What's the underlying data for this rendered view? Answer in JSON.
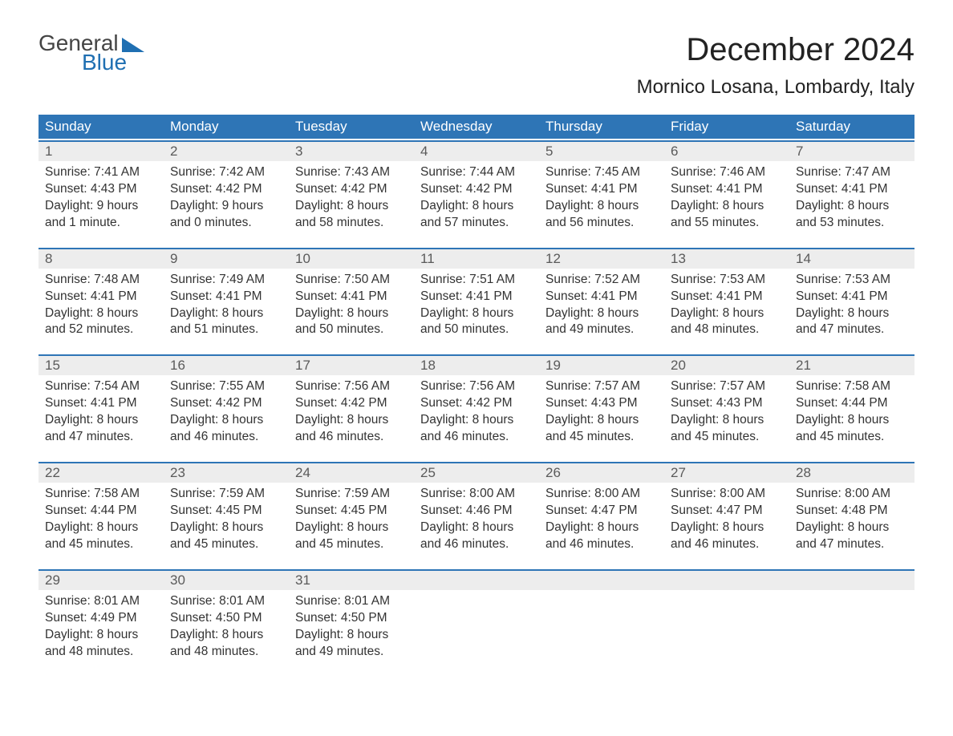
{
  "logo": {
    "top": "General",
    "bottom": "Blue"
  },
  "title": "December 2024",
  "location": "Mornico Losana, Lombardy, Italy",
  "colors": {
    "header_bg": "#2e75b6",
    "header_text": "#ffffff",
    "row_border": "#2e75b6",
    "daynum_bg": "#ededed",
    "daynum_text": "#5a5a5a",
    "body_text": "#333333",
    "logo_blue": "#1f6fb2",
    "logo_gray": "#444444",
    "page_bg": "#ffffff"
  },
  "fonts": {
    "title_size_pt": 30,
    "location_size_pt": 18,
    "dow_size_pt": 13,
    "daynum_size_pt": 13,
    "body_size_pt": 12
  },
  "layout": {
    "columns": 7,
    "rows": 5
  },
  "days_of_week": [
    "Sunday",
    "Monday",
    "Tuesday",
    "Wednesday",
    "Thursday",
    "Friday",
    "Saturday"
  ],
  "weeks": [
    [
      {
        "n": "1",
        "sunrise": "Sunrise: 7:41 AM",
        "sunset": "Sunset: 4:43 PM",
        "dl1": "Daylight: 9 hours",
        "dl2": "and 1 minute."
      },
      {
        "n": "2",
        "sunrise": "Sunrise: 7:42 AM",
        "sunset": "Sunset: 4:42 PM",
        "dl1": "Daylight: 9 hours",
        "dl2": "and 0 minutes."
      },
      {
        "n": "3",
        "sunrise": "Sunrise: 7:43 AM",
        "sunset": "Sunset: 4:42 PM",
        "dl1": "Daylight: 8 hours",
        "dl2": "and 58 minutes."
      },
      {
        "n": "4",
        "sunrise": "Sunrise: 7:44 AM",
        "sunset": "Sunset: 4:42 PM",
        "dl1": "Daylight: 8 hours",
        "dl2": "and 57 minutes."
      },
      {
        "n": "5",
        "sunrise": "Sunrise: 7:45 AM",
        "sunset": "Sunset: 4:41 PM",
        "dl1": "Daylight: 8 hours",
        "dl2": "and 56 minutes."
      },
      {
        "n": "6",
        "sunrise": "Sunrise: 7:46 AM",
        "sunset": "Sunset: 4:41 PM",
        "dl1": "Daylight: 8 hours",
        "dl2": "and 55 minutes."
      },
      {
        "n": "7",
        "sunrise": "Sunrise: 7:47 AM",
        "sunset": "Sunset: 4:41 PM",
        "dl1": "Daylight: 8 hours",
        "dl2": "and 53 minutes."
      }
    ],
    [
      {
        "n": "8",
        "sunrise": "Sunrise: 7:48 AM",
        "sunset": "Sunset: 4:41 PM",
        "dl1": "Daylight: 8 hours",
        "dl2": "and 52 minutes."
      },
      {
        "n": "9",
        "sunrise": "Sunrise: 7:49 AM",
        "sunset": "Sunset: 4:41 PM",
        "dl1": "Daylight: 8 hours",
        "dl2": "and 51 minutes."
      },
      {
        "n": "10",
        "sunrise": "Sunrise: 7:50 AM",
        "sunset": "Sunset: 4:41 PM",
        "dl1": "Daylight: 8 hours",
        "dl2": "and 50 minutes."
      },
      {
        "n": "11",
        "sunrise": "Sunrise: 7:51 AM",
        "sunset": "Sunset: 4:41 PM",
        "dl1": "Daylight: 8 hours",
        "dl2": "and 50 minutes."
      },
      {
        "n": "12",
        "sunrise": "Sunrise: 7:52 AM",
        "sunset": "Sunset: 4:41 PM",
        "dl1": "Daylight: 8 hours",
        "dl2": "and 49 minutes."
      },
      {
        "n": "13",
        "sunrise": "Sunrise: 7:53 AM",
        "sunset": "Sunset: 4:41 PM",
        "dl1": "Daylight: 8 hours",
        "dl2": "and 48 minutes."
      },
      {
        "n": "14",
        "sunrise": "Sunrise: 7:53 AM",
        "sunset": "Sunset: 4:41 PM",
        "dl1": "Daylight: 8 hours",
        "dl2": "and 47 minutes."
      }
    ],
    [
      {
        "n": "15",
        "sunrise": "Sunrise: 7:54 AM",
        "sunset": "Sunset: 4:41 PM",
        "dl1": "Daylight: 8 hours",
        "dl2": "and 47 minutes."
      },
      {
        "n": "16",
        "sunrise": "Sunrise: 7:55 AM",
        "sunset": "Sunset: 4:42 PM",
        "dl1": "Daylight: 8 hours",
        "dl2": "and 46 minutes."
      },
      {
        "n": "17",
        "sunrise": "Sunrise: 7:56 AM",
        "sunset": "Sunset: 4:42 PM",
        "dl1": "Daylight: 8 hours",
        "dl2": "and 46 minutes."
      },
      {
        "n": "18",
        "sunrise": "Sunrise: 7:56 AM",
        "sunset": "Sunset: 4:42 PM",
        "dl1": "Daylight: 8 hours",
        "dl2": "and 46 minutes."
      },
      {
        "n": "19",
        "sunrise": "Sunrise: 7:57 AM",
        "sunset": "Sunset: 4:43 PM",
        "dl1": "Daylight: 8 hours",
        "dl2": "and 45 minutes."
      },
      {
        "n": "20",
        "sunrise": "Sunrise: 7:57 AM",
        "sunset": "Sunset: 4:43 PM",
        "dl1": "Daylight: 8 hours",
        "dl2": "and 45 minutes."
      },
      {
        "n": "21",
        "sunrise": "Sunrise: 7:58 AM",
        "sunset": "Sunset: 4:44 PM",
        "dl1": "Daylight: 8 hours",
        "dl2": "and 45 minutes."
      }
    ],
    [
      {
        "n": "22",
        "sunrise": "Sunrise: 7:58 AM",
        "sunset": "Sunset: 4:44 PM",
        "dl1": "Daylight: 8 hours",
        "dl2": "and 45 minutes."
      },
      {
        "n": "23",
        "sunrise": "Sunrise: 7:59 AM",
        "sunset": "Sunset: 4:45 PM",
        "dl1": "Daylight: 8 hours",
        "dl2": "and 45 minutes."
      },
      {
        "n": "24",
        "sunrise": "Sunrise: 7:59 AM",
        "sunset": "Sunset: 4:45 PM",
        "dl1": "Daylight: 8 hours",
        "dl2": "and 45 minutes."
      },
      {
        "n": "25",
        "sunrise": "Sunrise: 8:00 AM",
        "sunset": "Sunset: 4:46 PM",
        "dl1": "Daylight: 8 hours",
        "dl2": "and 46 minutes."
      },
      {
        "n": "26",
        "sunrise": "Sunrise: 8:00 AM",
        "sunset": "Sunset: 4:47 PM",
        "dl1": "Daylight: 8 hours",
        "dl2": "and 46 minutes."
      },
      {
        "n": "27",
        "sunrise": "Sunrise: 8:00 AM",
        "sunset": "Sunset: 4:47 PM",
        "dl1": "Daylight: 8 hours",
        "dl2": "and 46 minutes."
      },
      {
        "n": "28",
        "sunrise": "Sunrise: 8:00 AM",
        "sunset": "Sunset: 4:48 PM",
        "dl1": "Daylight: 8 hours",
        "dl2": "and 47 minutes."
      }
    ],
    [
      {
        "n": "29",
        "sunrise": "Sunrise: 8:01 AM",
        "sunset": "Sunset: 4:49 PM",
        "dl1": "Daylight: 8 hours",
        "dl2": "and 48 minutes."
      },
      {
        "n": "30",
        "sunrise": "Sunrise: 8:01 AM",
        "sunset": "Sunset: 4:50 PM",
        "dl1": "Daylight: 8 hours",
        "dl2": "and 48 minutes."
      },
      {
        "n": "31",
        "sunrise": "Sunrise: 8:01 AM",
        "sunset": "Sunset: 4:50 PM",
        "dl1": "Daylight: 8 hours",
        "dl2": "and 49 minutes."
      },
      {
        "n": "",
        "empty": true
      },
      {
        "n": "",
        "empty": true
      },
      {
        "n": "",
        "empty": true
      },
      {
        "n": "",
        "empty": true
      }
    ]
  ]
}
